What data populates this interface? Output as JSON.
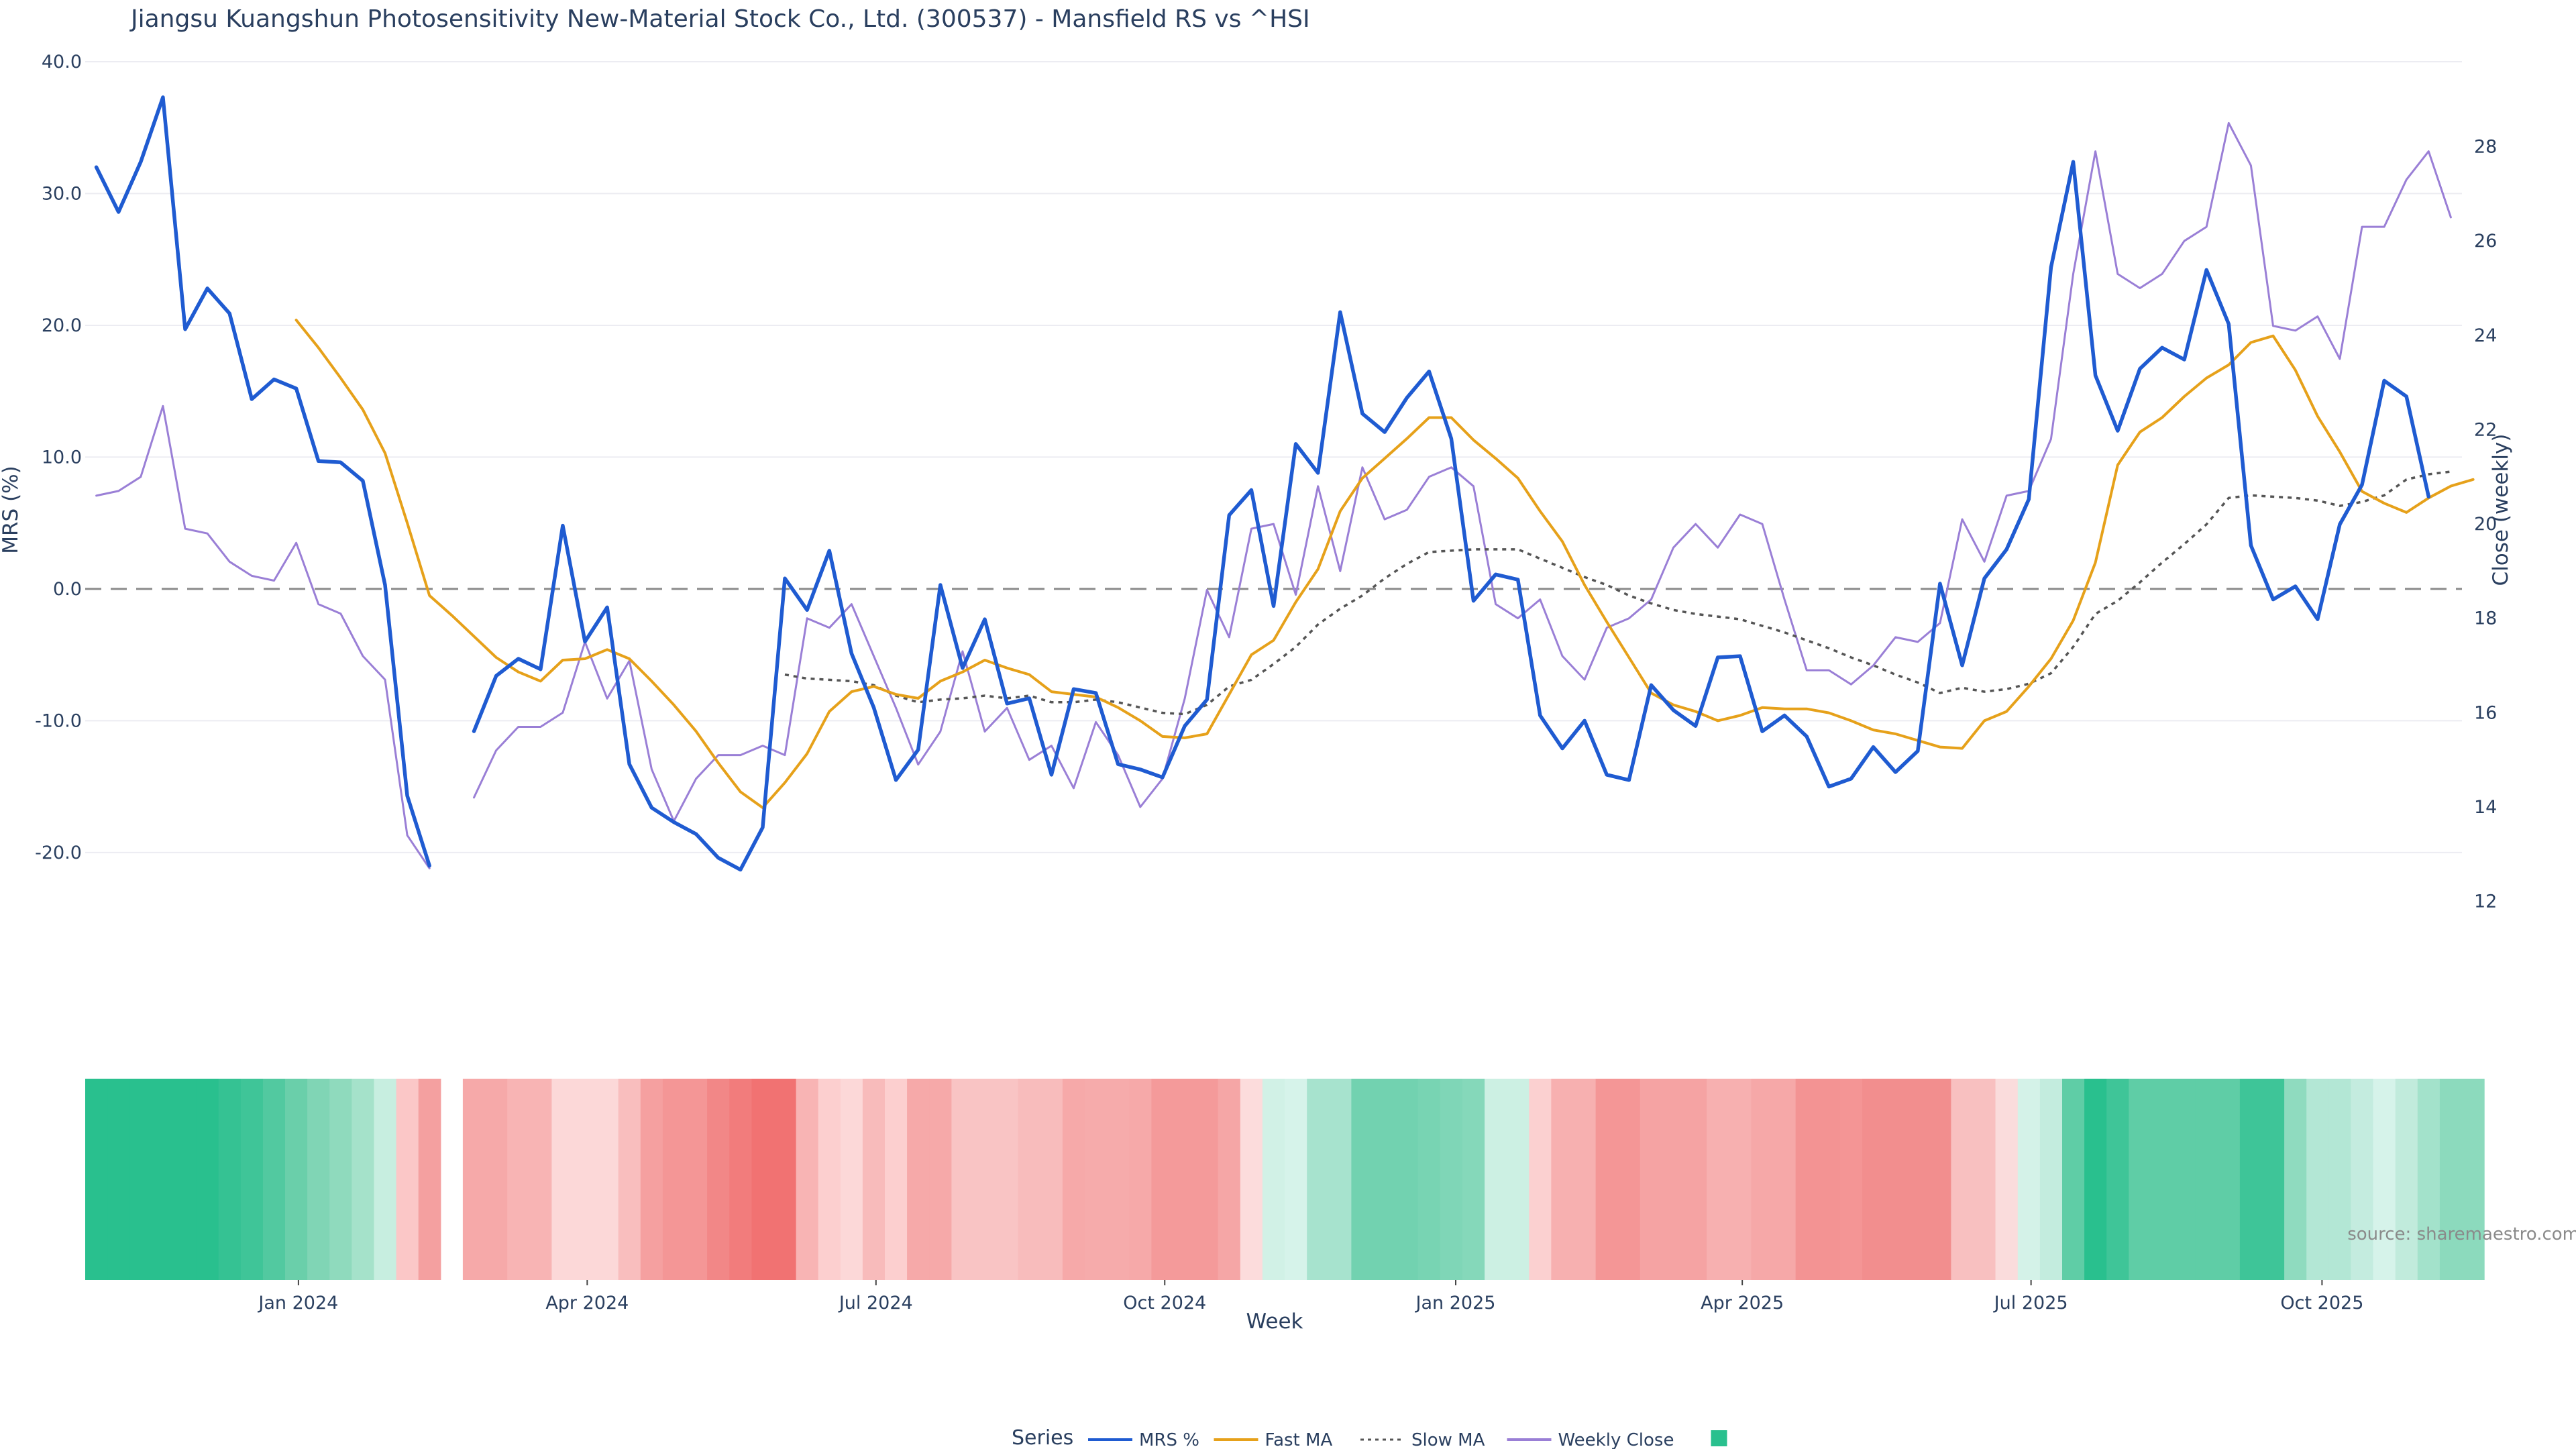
{
  "chart_data": {
    "type": "line",
    "title": "Jiangsu Kuangshun Photosensitivity New-Material Stock Co., Ltd. (300537) - Mansfield RS vs ^HSI",
    "xlabel": "Week",
    "ylabel_left": "MRS (%)",
    "ylabel_right": "Close (weekly)",
    "ylim_left": [
      -28,
      40
    ],
    "ylim_right": [
      10.8,
      29.8
    ],
    "left_ticks": [
      "40.0",
      "30.0",
      "20.0",
      "10.0",
      "0.0",
      "-10.0",
      "-20.0"
    ],
    "left_tick_values": [
      40,
      30,
      20,
      10,
      0,
      -10,
      -20
    ],
    "right_ticks": [
      "28",
      "26",
      "24",
      "22",
      "20",
      "18",
      "16",
      "14",
      "12"
    ],
    "right_tick_values": [
      28,
      26,
      24,
      22,
      20,
      18,
      16,
      14,
      12
    ],
    "x_ticks": [
      "Jan 2024",
      "Apr 2024",
      "Jul 2024",
      "Oct 2024",
      "Jan 2025",
      "Apr 2025",
      "Jul 2025",
      "Oct 2025"
    ],
    "x_tick_weeks": [
      9.6,
      22.6,
      35.6,
      48.6,
      61.7,
      74.6,
      87.6,
      100.7
    ],
    "reference_line": 0,
    "weeks": 107,
    "gap_weeks": [
      16
    ],
    "series": [
      {
        "name": "MRS %",
        "axis": "left",
        "color": "#1f5bd1",
        "style": "solid",
        "values": [
          32.0,
          28.6,
          32.4,
          37.3,
          19.7,
          22.8,
          20.9,
          14.4,
          15.9,
          15.2,
          9.7,
          9.6,
          8.2,
          0.3,
          -15.7,
          -21.0,
          null,
          -10.8,
          -6.6,
          -5.3,
          -6.1,
          4.8,
          -4.0,
          -1.4,
          -13.3,
          -16.6,
          -17.7,
          -18.6,
          -20.4,
          -21.3,
          -18.1,
          0.8,
          -1.6,
          2.9,
          -4.9,
          -9.0,
          -14.5,
          -12.2,
          0.3,
          -6.0,
          -2.3,
          -8.7,
          -8.3,
          -14.1,
          -7.6,
          -7.9,
          -13.3,
          -13.7,
          -14.3,
          -10.4,
          -8.4,
          5.6,
          7.5,
          -1.3,
          11.0,
          8.8,
          21.0,
          13.3,
          11.9,
          14.5,
          16.5,
          11.4,
          -0.9,
          1.1,
          0.7,
          -9.6,
          -12.1,
          -10.0,
          -14.1,
          -14.5,
          -7.3,
          -9.2,
          -10.4,
          -5.2,
          -5.1,
          -10.8,
          -9.6,
          -11.2,
          -15.0,
          -14.4,
          -12.0,
          -13.9,
          -12.3,
          0.4,
          -5.8,
          0.8,
          3.0,
          6.8,
          24.4,
          32.4,
          16.2,
          12.0,
          16.7,
          18.3,
          17.4,
          24.2,
          20.1,
          3.3,
          -0.8,
          0.2,
          -2.3,
          4.9,
          7.9,
          15.8,
          14.6,
          7.0
        ]
      },
      {
        "name": "Fast MA",
        "axis": "left",
        "color": "#e6a11a",
        "style": "solid",
        "values": [
          null,
          null,
          null,
          null,
          null,
          null,
          null,
          null,
          null,
          20.4,
          18.3,
          16.0,
          13.6,
          10.3,
          5.0,
          -0.5,
          -2.0,
          -3.6,
          -5.2,
          -6.3,
          -7.0,
          -5.4,
          -5.3,
          -4.6,
          -5.3,
          -7.0,
          -8.8,
          -10.8,
          -13.2,
          -15.4,
          -16.6,
          -14.7,
          -12.5,
          -9.3,
          -7.8,
          -7.4,
          -8.0,
          -8.3,
          -7.0,
          -6.3,
          -5.4,
          -6.0,
          -6.5,
          -7.8,
          -8.0,
          -8.2,
          -9.0,
          -10.0,
          -11.2,
          -11.3,
          -11.0,
          -8.0,
          -5.0,
          -3.9,
          -1.0,
          1.5,
          5.9,
          8.4,
          9.9,
          11.4,
          13.0,
          13.0,
          11.3,
          9.9,
          8.4,
          5.9,
          3.6,
          0.3,
          -2.5,
          -5.2,
          -7.9,
          -8.8,
          -9.3,
          -10.0,
          -9.6,
          -9.0,
          -9.1,
          -9.1,
          -9.4,
          -10.0,
          -10.7,
          -11.0,
          -11.5,
          -12.0,
          -12.1,
          -10.0,
          -9.3,
          -7.4,
          -5.3,
          -2.4,
          2.0,
          9.4,
          11.9,
          13.0,
          14.6,
          16.0,
          17.0,
          18.7,
          19.2,
          16.6,
          13.1,
          10.4,
          7.4,
          6.5,
          5.8,
          6.9,
          7.8,
          8.3
        ]
      },
      {
        "name": "Slow MA",
        "axis": "left",
        "color": "#555555",
        "style": "dotted",
        "values": [
          null,
          null,
          null,
          null,
          null,
          null,
          null,
          null,
          null,
          null,
          null,
          null,
          null,
          null,
          null,
          null,
          null,
          null,
          null,
          null,
          null,
          null,
          null,
          null,
          null,
          null,
          null,
          null,
          null,
          null,
          null,
          -6.5,
          -6.8,
          -6.9,
          -7.0,
          -7.3,
          -8.1,
          -8.6,
          -8.4,
          -8.3,
          -8.1,
          -8.3,
          -8.1,
          -8.6,
          -8.6,
          -8.4,
          -8.6,
          -9.0,
          -9.4,
          -9.5,
          -8.8,
          -7.4,
          -6.9,
          -5.7,
          -4.4,
          -2.7,
          -1.5,
          -0.5,
          0.8,
          1.9,
          2.8,
          2.9,
          3.0,
          3.0,
          3.0,
          2.3,
          1.6,
          0.9,
          0.3,
          -0.5,
          -1.1,
          -1.6,
          -1.9,
          -2.1,
          -2.3,
          -2.8,
          -3.3,
          -3.9,
          -4.5,
          -5.2,
          -5.8,
          -6.5,
          -7.1,
          -7.9,
          -7.5,
          -7.8,
          -7.6,
          -7.2,
          -6.4,
          -4.4,
          -1.9,
          -0.9,
          0.5,
          2.0,
          3.4,
          4.9,
          6.9,
          7.1,
          7.0,
          6.9,
          6.7,
          6.3,
          6.6,
          7.1,
          8.3,
          8.7,
          8.9
        ]
      },
      {
        "name": "Weekly Close",
        "axis": "right",
        "color": "#9a7fd6",
        "style": "solid",
        "values": [
          20.6,
          20.7,
          21.0,
          22.5,
          19.9,
          19.8,
          19.2,
          18.9,
          18.8,
          19.6,
          18.3,
          18.1,
          17.2,
          16.7,
          13.4,
          12.7,
          null,
          14.2,
          15.2,
          15.7,
          15.7,
          16.0,
          17.5,
          16.3,
          17.1,
          14.8,
          13.7,
          14.6,
          15.1,
          15.1,
          15.3,
          15.1,
          18.0,
          17.8,
          18.3,
          17.2,
          16.1,
          14.9,
          15.6,
          17.3,
          15.6,
          16.1,
          15.0,
          15.3,
          14.4,
          15.8,
          15.1,
          14.0,
          14.6,
          16.3,
          18.6,
          17.6,
          19.9,
          20.0,
          18.5,
          20.8,
          19.0,
          21.2,
          20.1,
          20.3,
          21.0,
          21.2,
          20.8,
          18.3,
          18.0,
          18.4,
          17.2,
          16.7,
          17.8,
          18.0,
          18.4,
          19.5,
          20.0,
          19.5,
          20.2,
          20.0,
          18.4,
          16.9,
          16.9,
          16.6,
          17.0,
          17.6,
          17.5,
          17.9,
          20.1,
          19.2,
          20.6,
          20.7,
          21.8,
          25.3,
          27.9,
          25.3,
          25.0,
          25.3,
          26.0,
          26.3,
          28.5,
          27.6,
          24.2,
          24.1,
          24.4,
          23.5,
          26.3,
          26.3,
          27.3,
          27.9,
          26.5
        ]
      }
    ],
    "heat_strip": [
      "#29c08e",
      "#29c08e",
      "#29c08e",
      "#29c08e",
      "#29c08e",
      "#29c08e",
      "#35c293",
      "#3fc598",
      "#52c9a0",
      "#6acfaa",
      "#80d5b5",
      "#8fdabd",
      "#a5e2ca",
      "#c7eee0",
      "#fbc7c7",
      "#f4a0a0",
      null,
      "#f6a9a9",
      "#f6a9a9",
      "#f8b4b4",
      "#f8b4b4",
      "#fcd8d8",
      "#fcd8d8",
      "#fcd8d8",
      "#f9bebe",
      "#f5a0a0",
      "#f49696",
      "#f49696",
      "#f28787",
      "#f27c7c",
      "#f17272",
      "#f17272",
      "#f8b4b4",
      "#fccfcf",
      "#fcd8d8",
      "#f8bbbb",
      "#fccfcf",
      "#f6a9a9",
      "#f6a9a9",
      "#f9c4c4",
      "#f9c4c4",
      "#f9c4c4",
      "#f8bcbc",
      "#f8bcbc",
      "#f6a9a9",
      "#f6abab",
      "#f6abab",
      "#f6a9a9",
      "#f49a9a",
      "#f49a9a",
      "#f49a9a",
      "#f5a6a6",
      "#fcdcdc",
      "#d1f1e6",
      "#d6f3ea",
      "#a7e3ce",
      "#a7e3ce",
      "#72d2b0",
      "#72d2b0",
      "#72d2b0",
      "#78d4b3",
      "#7fd6b7",
      "#85d8ba",
      "#ccf0e3",
      "#ccf0e3",
      "#fbd0d0",
      "#f7b0b0",
      "#f7b0b0",
      "#f49696",
      "#f49696",
      "#f5a3a3",
      "#f5a3a3",
      "#f5a3a3",
      "#f7b0b0",
      "#f7b0b0",
      "#f6a8a8",
      "#f6a8a8",
      "#f39393",
      "#f39393",
      "#f49595",
      "#f28e8e",
      "#f28e8e",
      "#f28e8e",
      "#f28e8e",
      "#f8c0c0",
      "#f8c0c0",
      "#fadcdc",
      "#d4f2e8",
      "#c3ecde",
      "#5fcda6",
      "#29c08e",
      "#3fc598",
      "#5fcda6",
      "#5fcda6",
      "#5fcda6",
      "#5fcda6",
      "#5fcda6",
      "#3ec598",
      "#3ec598",
      "#8fdbbf",
      "#b3e7d5",
      "#b3e7d5",
      "#c4ecdf",
      "#d6f3ea",
      "#c1ebdc",
      "#a3e2cb",
      "#8cdabd",
      "#8cdabd"
    ],
    "legend": {
      "title": "Series",
      "placement": "bottom-center",
      "items": [
        {
          "label": "MRS %",
          "color": "#1f5bd1",
          "style": "solid"
        },
        {
          "label": "Fast MA",
          "color": "#e6a11a",
          "style": "solid"
        },
        {
          "label": "Slow MA",
          "color": "#555555",
          "style": "dotted"
        },
        {
          "label": "Weekly Close",
          "color": "#9a7fd6",
          "style": "solid"
        },
        {
          "label": "",
          "color": "#29c08e",
          "style": "square"
        }
      ]
    },
    "source_note": "source: sharemaestro.com"
  }
}
